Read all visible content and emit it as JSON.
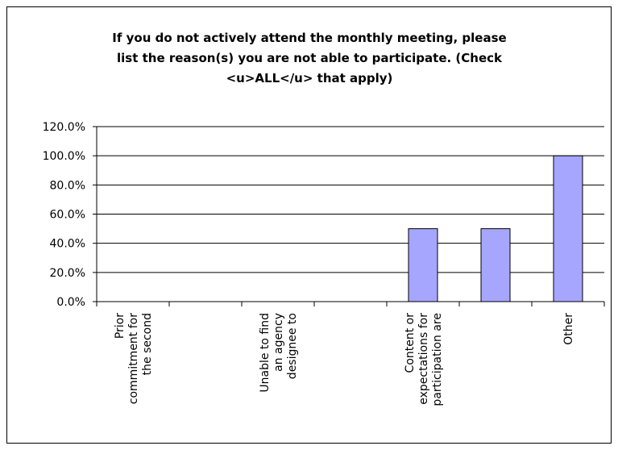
{
  "chart_data": {
    "type": "bar",
    "title": "If you do not actively attend the monthly meeting, please\nlist the reason(s) you are not able to participate. (Check\n<u>ALL</u> that apply)",
    "categories": [
      "Prior\ncommitment for\nthe second",
      null,
      "Unable to find\nan agency\ndesignee to",
      null,
      "Content or\nexpectations for\nparticipation are",
      null,
      "Other"
    ],
    "values": [
      0,
      0,
      0,
      0,
      50,
      50,
      100
    ],
    "color": "#a6a6ff",
    "ylim": [
      0,
      120
    ],
    "yticks": [
      {
        "value": 0,
        "label": "0.0%"
      },
      {
        "value": 20,
        "label": "20.0%"
      },
      {
        "value": 40,
        "label": "40.0%"
      },
      {
        "value": 60,
        "label": "60.0%"
      },
      {
        "value": 80,
        "label": "80.0%"
      },
      {
        "value": 100,
        "label": "100.0%"
      },
      {
        "value": 120,
        "label": "120.0%"
      }
    ],
    "grid": true
  }
}
